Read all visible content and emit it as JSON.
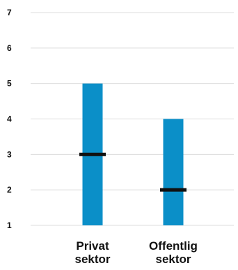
{
  "chart_data": {
    "type": "bar",
    "categories": [
      [
        "Privat",
        "sektor"
      ],
      [
        "Offentlig",
        "sektor"
      ]
    ],
    "ranges": [
      {
        "low": 1,
        "high": 5,
        "median": 3
      },
      {
        "low": 1,
        "high": 4,
        "median": 2
      }
    ],
    "ylim": [
      1,
      7
    ],
    "yticks": [
      1,
      2,
      3,
      4,
      5,
      6,
      7
    ],
    "grid": true,
    "colors": {
      "bar": "#0b8fc8",
      "median": "#111111",
      "grid": "#dcdcdc"
    }
  }
}
